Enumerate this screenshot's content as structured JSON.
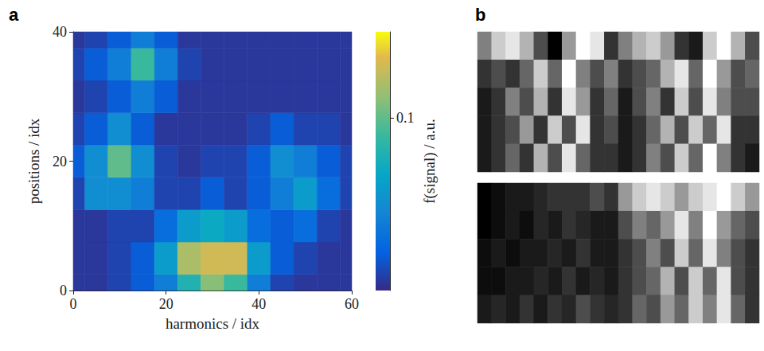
{
  "chart_data": [
    {
      "title": "a",
      "type": "heatmap",
      "x_label": "harmonics / idx",
      "y_label": "positions / idx",
      "z_label": "f(signal) / a.u.",
      "x": [
        0,
        5,
        10,
        15,
        20,
        25,
        30,
        35,
        40,
        45,
        50,
        55,
        60
      ],
      "y": [
        0,
        5,
        10,
        15,
        20,
        25,
        30,
        35,
        40
      ],
      "values": [
        [
          0.005,
          0.005,
          0.01,
          0.02,
          0.04,
          0.08,
          0.11,
          0.09,
          0.04,
          0.01,
          0.005,
          0.005,
          0.005
        ],
        [
          0.005,
          0.005,
          0.01,
          0.02,
          0.06,
          0.12,
          0.13,
          0.13,
          0.06,
          0.02,
          0.01,
          0.005,
          0.005
        ],
        [
          0.005,
          0.005,
          0.01,
          0.01,
          0.03,
          0.06,
          0.07,
          0.06,
          0.03,
          0.02,
          0.03,
          0.01,
          0.005
        ],
        [
          0.01,
          0.05,
          0.05,
          0.04,
          0.01,
          0.01,
          0.02,
          0.01,
          0.02,
          0.04,
          0.06,
          0.03,
          0.01
        ],
        [
          0.02,
          0.05,
          0.1,
          0.05,
          0.01,
          0.005,
          0.01,
          0.01,
          0.02,
          0.05,
          0.04,
          0.02,
          0.01
        ],
        [
          0.01,
          0.02,
          0.05,
          0.02,
          0.005,
          0.005,
          0.005,
          0.005,
          0.01,
          0.02,
          0.01,
          0.01,
          0.005
        ],
        [
          0.005,
          0.01,
          0.02,
          0.04,
          0.02,
          0.005,
          0.005,
          0.005,
          0.005,
          0.005,
          0.005,
          0.005,
          0.005
        ],
        [
          0.01,
          0.02,
          0.04,
          0.09,
          0.04,
          0.01,
          0.005,
          0.005,
          0.005,
          0.005,
          0.005,
          0.005,
          0.005
        ],
        [
          0.005,
          0.01,
          0.02,
          0.04,
          0.02,
          0.005,
          0.005,
          0.005,
          0.005,
          0.005,
          0.005,
          0.005,
          0.005
        ]
      ],
      "xlim": [
        0,
        60
      ],
      "xticks": [
        0,
        20,
        40,
        60
      ],
      "ylim": [
        0,
        40
      ],
      "yticks": [
        0,
        20,
        40
      ],
      "zlim": [
        0,
        0.15
      ],
      "zticks": [
        0.1
      ]
    },
    {
      "title": "b",
      "type": "heatmap",
      "tick_labels": false,
      "zlim": [
        0,
        1
      ],
      "values": [
        [
          [
            0.5,
            0.8,
            0.9,
            0.7,
            0.3,
            0.0,
            0.6,
            1.0,
            0.9,
            0.2,
            0.5,
            0.7,
            0.8,
            0.6,
            0.2,
            0.1,
            0.8,
            1.0,
            0.7,
            0.3
          ],
          [
            0.2,
            0.3,
            0.2,
            0.4,
            0.8,
            0.4,
            1.0,
            0.5,
            0.3,
            0.5,
            0.2,
            0.3,
            0.4,
            0.7,
            0.9,
            0.4,
            1.0,
            0.6,
            0.3,
            0.4
          ],
          [
            0.1,
            0.2,
            0.5,
            0.3,
            0.7,
            0.2,
            0.9,
            0.6,
            0.2,
            0.4,
            0.1,
            0.3,
            0.5,
            0.2,
            0.8,
            0.3,
            0.9,
            0.5,
            0.3,
            0.3
          ],
          [
            0.1,
            0.2,
            0.3,
            0.6,
            0.2,
            0.8,
            0.3,
            0.9,
            0.2,
            0.3,
            0.1,
            0.2,
            0.4,
            0.7,
            0.3,
            0.8,
            0.4,
            0.9,
            0.2,
            0.2
          ],
          [
            0.1,
            0.2,
            0.4,
            0.2,
            0.7,
            0.3,
            0.9,
            0.4,
            0.2,
            0.2,
            0.1,
            0.2,
            0.5,
            0.3,
            0.8,
            0.4,
            1.0,
            0.5,
            0.2,
            0.1
          ]
        ],
        [
          [
            0.0,
            0.05,
            0.1,
            0.1,
            0.15,
            0.2,
            0.2,
            0.2,
            0.3,
            0.2,
            0.6,
            0.8,
            0.9,
            0.8,
            0.6,
            0.8,
            0.9,
            1.0,
            0.8,
            0.6
          ],
          [
            0.0,
            0.05,
            0.1,
            0.05,
            0.15,
            0.1,
            0.2,
            0.15,
            0.1,
            0.1,
            0.3,
            0.5,
            0.4,
            0.6,
            0.9,
            0.5,
            1.0,
            0.6,
            0.4,
            0.3
          ],
          [
            0.05,
            0.1,
            0.05,
            0.1,
            0.1,
            0.15,
            0.1,
            0.2,
            0.1,
            0.1,
            0.2,
            0.3,
            0.5,
            0.3,
            0.8,
            0.4,
            0.9,
            0.5,
            0.3,
            0.2
          ],
          [
            0.05,
            0.05,
            0.1,
            0.1,
            0.15,
            0.1,
            0.2,
            0.1,
            0.15,
            0.1,
            0.2,
            0.3,
            0.4,
            0.7,
            0.3,
            0.8,
            0.4,
            0.9,
            0.3,
            0.2
          ],
          [
            0.1,
            0.15,
            0.1,
            0.2,
            0.1,
            0.2,
            0.15,
            0.3,
            0.2,
            0.15,
            0.2,
            0.4,
            0.3,
            0.6,
            0.4,
            0.8,
            0.5,
            0.9,
            0.4,
            0.2
          ]
        ]
      ]
    }
  ]
}
